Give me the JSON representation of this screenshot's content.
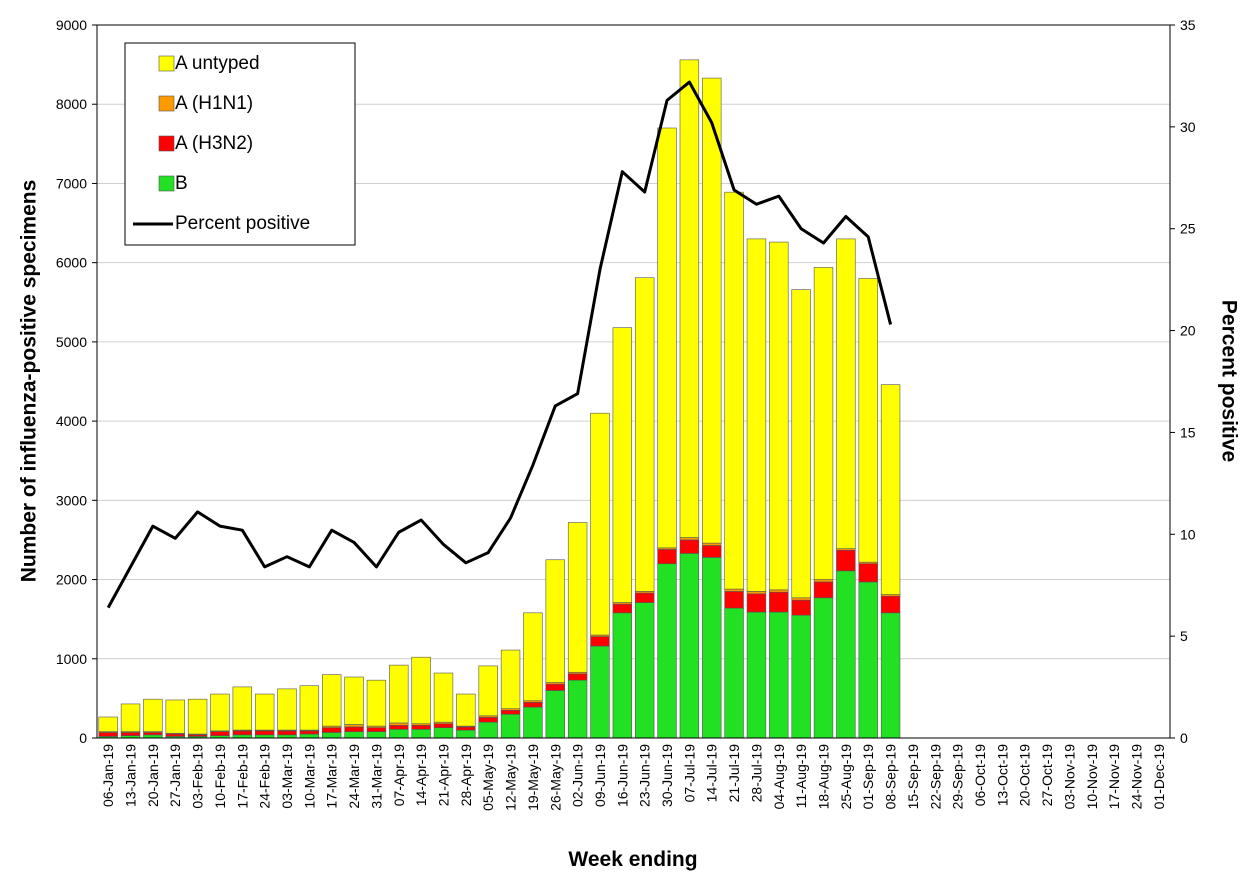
{
  "chart_data": {
    "type": "bar",
    "y_label": "Number  of influenza-positive specimens",
    "y2_label": "Percent positive",
    "x_label": "Week ending",
    "categories": [
      "06-Jan-19",
      "13-Jan-19",
      "20-Jan-19",
      "27-Jan-19",
      "03-Feb-19",
      "10-Feb-19",
      "17-Feb-19",
      "24-Feb-19",
      "03-Mar-19",
      "10-Mar-19",
      "17-Mar-19",
      "24-Mar-19",
      "31-Mar-19",
      "07-Apr-19",
      "14-Apr-19",
      "21-Apr-19",
      "28-Apr-19",
      "05-May-19",
      "12-May-19",
      "19-May-19",
      "26-May-19",
      "02-Jun-19",
      "09-Jun-19",
      "16-Jun-19",
      "23-Jun-19",
      "30-Jun-19",
      "07-Jul-19",
      "14-Jul-19",
      "21-Jul-19",
      "28-Jul-19",
      "04-Aug-19",
      "11-Aug-19",
      "18-Aug-19",
      "25-Aug-19",
      "01-Sep-19",
      "08-Sep-19",
      "15-Sep-19",
      "22-Sep-19",
      "29-Sep-19",
      "06-Oct-19",
      "13-Oct-19",
      "20-Oct-19",
      "27-Oct-19",
      "03-Nov-19",
      "10-Nov-19",
      "17-Nov-19",
      "24-Nov-19",
      "01-Dec-19"
    ],
    "series": [
      {
        "name": "A untyped",
        "color": "#ffff00",
        "type": "bar",
        "values": [
          185,
          350,
          410,
          420,
          440,
          465,
          545,
          455,
          520,
          560,
          650,
          600,
          580,
          730,
          840,
          620,
          405,
          630,
          740,
          1110,
          1550,
          1890,
          2800,
          3470,
          3960,
          5300,
          6030,
          5870,
          5010,
          4450,
          4390,
          3890,
          3940,
          3910,
          3580,
          2650,
          null,
          null,
          null,
          null,
          null,
          null,
          null,
          null,
          null,
          null,
          null,
          null
        ]
      },
      {
        "name": "A (H1N1)",
        "color": "#ff9900",
        "type": "bar",
        "values": [
          10,
          10,
          10,
          10,
          10,
          10,
          10,
          10,
          10,
          10,
          20,
          30,
          20,
          30,
          20,
          20,
          10,
          20,
          20,
          20,
          20,
          20,
          20,
          20,
          20,
          20,
          30,
          30,
          30,
          30,
          30,
          30,
          30,
          20,
          20,
          20,
          null,
          null,
          null,
          null,
          null,
          null,
          null,
          null,
          null,
          null,
          null,
          null
        ]
      },
      {
        "name": "A (H3N2)",
        "color": "#ff0000",
        "type": "bar",
        "values": [
          50,
          40,
          30,
          30,
          20,
          50,
          50,
          50,
          50,
          40,
          60,
          60,
          50,
          50,
          50,
          50,
          40,
          60,
          50,
          60,
          80,
          80,
          120,
          110,
          120,
          180,
          170,
          150,
          210,
          230,
          250,
          190,
          200,
          260,
          230,
          210,
          null,
          null,
          null,
          null,
          null,
          null,
          null,
          null,
          null,
          null,
          null,
          null
        ]
      },
      {
        "name": "B",
        "color": "#22e022",
        "type": "bar",
        "values": [
          20,
          30,
          40,
          20,
          20,
          30,
          40,
          40,
          40,
          50,
          70,
          80,
          80,
          110,
          110,
          130,
          100,
          200,
          300,
          390,
          600,
          730,
          1160,
          1580,
          1710,
          2200,
          2330,
          2280,
          1640,
          1590,
          1590,
          1550,
          1770,
          2110,
          1970,
          1580,
          null,
          null,
          null,
          null,
          null,
          null,
          null,
          null,
          null,
          null,
          null,
          null
        ]
      },
      {
        "name": "Percent positive",
        "color": "#000000",
        "type": "line",
        "axis": "y2",
        "values": [
          6.4,
          8.4,
          10.4,
          9.8,
          11.1,
          10.4,
          10.2,
          8.4,
          8.9,
          8.4,
          10.2,
          9.6,
          8.4,
          10.1,
          10.7,
          9.5,
          8.6,
          9.1,
          10.8,
          13.4,
          16.3,
          16.9,
          23.0,
          27.8,
          26.8,
          31.3,
          32.2,
          30.2,
          26.9,
          26.2,
          26.6,
          25.0,
          24.3,
          25.6,
          24.6,
          20.3,
          null,
          null,
          null,
          null,
          null,
          null,
          null,
          null,
          null,
          null,
          null,
          null
        ]
      }
    ],
    "ylim": [
      0,
      9000
    ],
    "yticks": [
      0,
      1000,
      2000,
      3000,
      4000,
      5000,
      6000,
      7000,
      8000,
      9000
    ],
    "y2lim": [
      0,
      35
    ],
    "y2ticks": [
      0,
      5,
      10,
      15,
      20,
      25,
      30,
      35
    ],
    "grid": true,
    "legend": "upper-left"
  }
}
